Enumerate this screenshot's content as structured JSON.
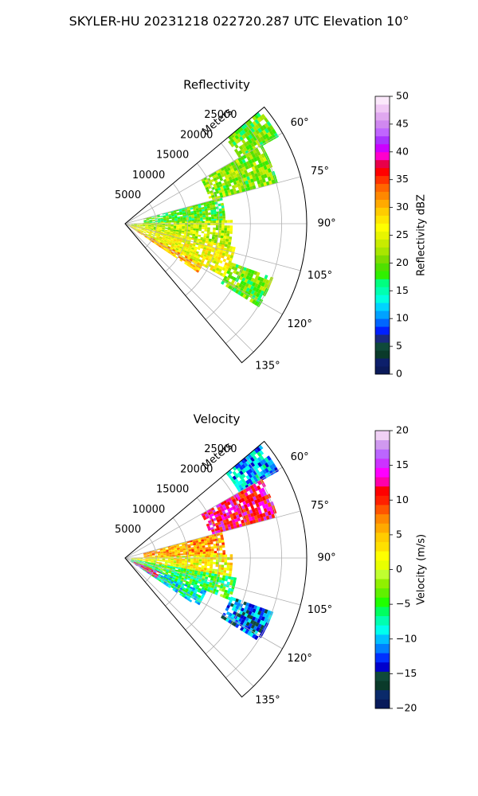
{
  "figure": {
    "title": "SKYLER-HU  20231218  022720.287 UTC Elevation 10°"
  },
  "colors": {
    "reflectivity_scale": [
      "#0b1a5a",
      "#0d1f6b",
      "#0a3a2a",
      "#0f4a3a",
      "#1a2a80",
      "#0020ff",
      "#0066ff",
      "#00a2ff",
      "#00d4ff",
      "#00ffe0",
      "#00ffb0",
      "#00ff80",
      "#30f000",
      "#50e000",
      "#7ddc00",
      "#a8e600",
      "#c8ec00",
      "#e8f500",
      "#ffff00",
      "#ffe600",
      "#ffcc00",
      "#ffaa00",
      "#ff8800",
      "#ff6600",
      "#ff3300",
      "#ff0000",
      "#e8004a",
      "#ff00cc",
      "#cc00ff",
      "#aa33ff",
      "#c066ff",
      "#d088f0",
      "#e0a8f0",
      "#f0c8f5",
      "#fbe8fb"
    ],
    "velocity_scale": [
      "#081a5a",
      "#0a2a6a",
      "#0a3a2a",
      "#0f4a3a",
      "#0000cc",
      "#0030ff",
      "#0080ff",
      "#00c0ff",
      "#00ffee",
      "#00ffb0",
      "#00ff60",
      "#20ff00",
      "#60f000",
      "#90f000",
      "#c0ff30",
      "#e8ff00",
      "#ffff00",
      "#ffe000",
      "#ffcc00",
      "#ffaa00",
      "#ff8800",
      "#ff5500",
      "#ff2000",
      "#ff0000",
      "#ff00aa",
      "#ff00ff",
      "#cc33ff",
      "#bb66ff",
      "#d099f0",
      "#f0d0f5"
    ]
  },
  "chart_data": [
    {
      "type": "heatmap",
      "title": "Reflectivity",
      "projection": "polar sector",
      "theta_range_deg": [
        50,
        140
      ],
      "r_range_m": [
        0,
        29000
      ],
      "radial_label": "Meters",
      "radial_ticks": [
        5000,
        10000,
        15000,
        20000,
        25000
      ],
      "radial_tick_labels": [
        "5000",
        "10000",
        "15000",
        "20000",
        "25000"
      ],
      "theta_ticks": [
        60,
        75,
        90,
        105,
        120,
        135
      ],
      "theta_tick_labels": [
        "60°",
        "75°",
        "90°",
        "105°",
        "120°",
        "135°"
      ],
      "grid": true,
      "colorbar": {
        "label": "Reflectivity dBZ",
        "range": [
          0,
          50
        ],
        "ticks": [
          0,
          5,
          10,
          15,
          20,
          25,
          30,
          35,
          40,
          45,
          50
        ],
        "tick_labels": [
          "0",
          "5",
          "10",
          "15",
          "20",
          "25",
          "30",
          "35",
          "40",
          "45",
          "50"
        ]
      },
      "echo": {
        "bands": [
          {
            "theta": [
              50,
              60
            ],
            "r": [
              21000,
              28000
            ],
            "value": 20
          },
          {
            "theta": [
              60,
              75
            ],
            "r": [
              14000,
              25000
            ],
            "value": 21
          },
          {
            "theta": [
              75,
              88
            ],
            "r": [
              3000,
              16000
            ],
            "value": 19
          },
          {
            "theta": [
              88,
              102
            ],
            "r": [
              1000,
              17000
            ],
            "value": 23
          },
          {
            "theta": [
              102,
              118
            ],
            "r": [
              500,
              18000
            ],
            "value": 26
          },
          {
            "theta": [
              118,
              124
            ],
            "r": [
              1000,
              14000
            ],
            "value": 30
          },
          {
            "theta": [
              110,
              122
            ],
            "r": [
              18000,
              25000
            ],
            "value": 20
          }
        ]
      }
    },
    {
      "type": "heatmap",
      "title": "Velocity",
      "projection": "polar sector",
      "theta_range_deg": [
        50,
        140
      ],
      "r_range_m": [
        0,
        29000
      ],
      "radial_label": "Meters",
      "radial_ticks": [
        5000,
        10000,
        15000,
        20000,
        25000
      ],
      "radial_tick_labels": [
        "5000",
        "10000",
        "15000",
        "20000",
        "25000"
      ],
      "theta_ticks": [
        60,
        75,
        90,
        105,
        120,
        135
      ],
      "theta_tick_labels": [
        "60°",
        "75°",
        "90°",
        "105°",
        "120°",
        "135°"
      ],
      "grid": true,
      "colorbar": {
        "label": "Velocity (m/s)",
        "range": [
          -20,
          20
        ],
        "ticks": [
          -20,
          -15,
          -10,
          -5,
          0,
          5,
          10,
          15,
          20
        ],
        "tick_labels": [
          "−20",
          "−15",
          "−10",
          "−5",
          "0",
          "5",
          "10",
          "15",
          "20"
        ]
      },
      "echo": {
        "bands": [
          {
            "theta": [
              50,
              60
            ],
            "r": [
              21000,
              28000
            ],
            "value": -10
          },
          {
            "theta": [
              60,
              75
            ],
            "r": [
              14000,
              25000
            ],
            "value": 12
          },
          {
            "theta": [
              75,
              88
            ],
            "r": [
              3000,
              16000
            ],
            "value": 6
          },
          {
            "theta": [
              88,
              100
            ],
            "r": [
              1000,
              17000
            ],
            "value": 2
          },
          {
            "theta": [
              100,
              112
            ],
            "r": [
              1000,
              18000
            ],
            "value": -5
          },
          {
            "theta": [
              112,
              124
            ],
            "r": [
              1000,
              14000
            ],
            "value": -8
          },
          {
            "theta": [
              110,
              122
            ],
            "r": [
              18000,
              25000
            ],
            "value": -12
          },
          {
            "theta": [
              112,
              122
            ],
            "r": [
              1500,
              6000
            ],
            "value": 12
          }
        ]
      }
    }
  ]
}
